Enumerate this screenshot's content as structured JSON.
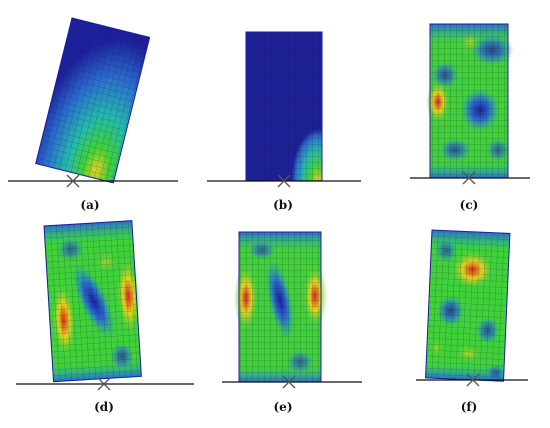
{
  "figure": {
    "panels": [
      {
        "id": "a",
        "caption": "(a)",
        "description": "tilted block, stress concentrated at lower-right corner"
      },
      {
        "id": "b",
        "caption": "(b)",
        "description": "upright block, mostly low stress with small hot corner"
      },
      {
        "id": "c",
        "caption": "(c)",
        "description": "upright block, mixed green field with red patch on left edge"
      },
      {
        "id": "d",
        "caption": "(d)",
        "description": "tilted block, red bands on left and right edges"
      },
      {
        "id": "e",
        "caption": "(e)",
        "description": "upright block, red bands on both side edges"
      },
      {
        "id": "f",
        "caption": "(f)",
        "description": "slightly tilted block, red patch upper-middle"
      }
    ],
    "colors": {
      "low": "#1c1f9e",
      "low_mid": "#2a6fd0",
      "mid": "#23b9b0",
      "mid_high": "#3fd23a",
      "high": "#e6d21e",
      "peak": "#d8271c",
      "mesh_line": "#1a1a1a",
      "ground_line": "#111111"
    }
  }
}
